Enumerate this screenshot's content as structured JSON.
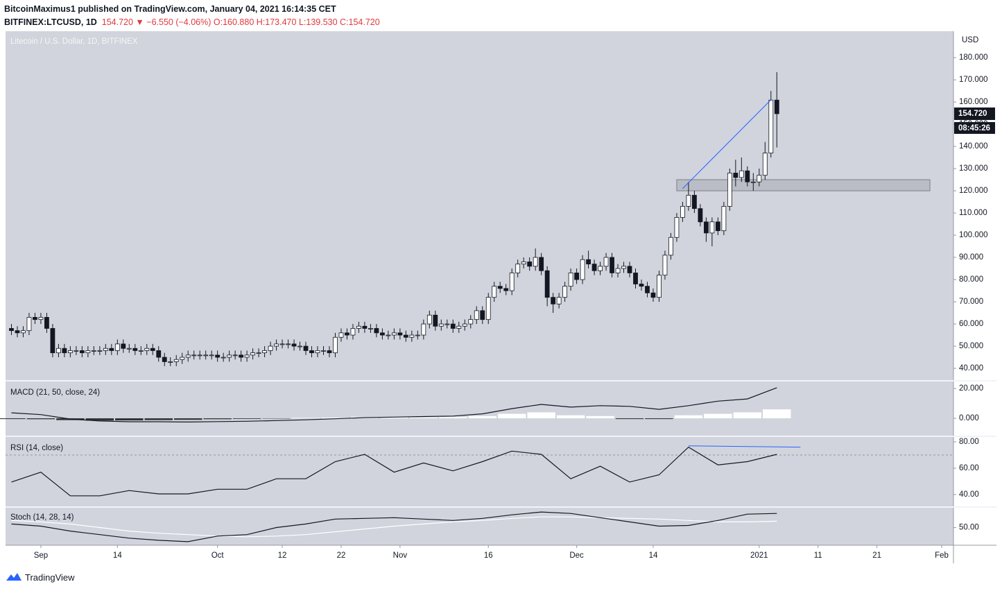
{
  "header": {
    "line1": "BitcoinMaximus1 published on TradingView.com, January 04, 2021 16:14:35 CET",
    "symbol": "BITFINEX:LTCUSD, 1D",
    "last": "154.720",
    "change": "−6.550 (−4.06%)",
    "open": "O:160.880",
    "high": "H:173.470",
    "low": "L:139.530",
    "close": "C:154.720"
  },
  "footer": {
    "brand": "TradingView"
  },
  "chart_data": [
    {
      "type": "candlestick",
      "title": "Litecoin / U.S. Dollar, 1D, BITFINEX",
      "unit": "USD",
      "x": [
        "2020-08-27",
        "2020-08-28",
        "2020-08-29",
        "2020-08-30",
        "2020-08-31",
        "2020-09-01",
        "2020-09-02",
        "2020-09-03",
        "2020-09-04",
        "2020-09-05",
        "2020-09-06",
        "2020-09-07",
        "2020-09-08",
        "2020-09-09",
        "2020-09-10",
        "2020-09-11",
        "2020-09-12",
        "2020-09-13",
        "2020-09-14",
        "2020-09-15",
        "2020-09-16",
        "2020-09-17",
        "2020-09-18",
        "2020-09-19",
        "2020-09-20",
        "2020-09-21",
        "2020-09-22",
        "2020-09-23",
        "2020-09-24",
        "2020-09-25",
        "2020-09-26",
        "2020-09-27",
        "2020-09-28",
        "2020-09-29",
        "2020-09-30",
        "2020-10-01",
        "2020-10-02",
        "2020-10-03",
        "2020-10-04",
        "2020-10-05",
        "2020-10-06",
        "2020-10-07",
        "2020-10-08",
        "2020-10-09",
        "2020-10-10",
        "2020-10-11",
        "2020-10-12",
        "2020-10-13",
        "2020-10-14",
        "2020-10-15",
        "2020-10-16",
        "2020-10-17",
        "2020-10-18",
        "2020-10-19",
        "2020-10-20",
        "2020-10-21",
        "2020-10-22",
        "2020-10-23",
        "2020-10-24",
        "2020-10-25",
        "2020-10-26",
        "2020-10-27",
        "2020-10-28",
        "2020-10-29",
        "2020-10-30",
        "2020-10-31",
        "2020-11-01",
        "2020-11-02",
        "2020-11-03",
        "2020-11-04",
        "2020-11-05",
        "2020-11-06",
        "2020-11-07",
        "2020-11-08",
        "2020-11-09",
        "2020-11-10",
        "2020-11-11",
        "2020-11-12",
        "2020-11-13",
        "2020-11-14",
        "2020-11-15",
        "2020-11-16",
        "2020-11-17",
        "2020-11-18",
        "2020-11-19",
        "2020-11-20",
        "2020-11-21",
        "2020-11-22",
        "2020-11-23",
        "2020-11-24",
        "2020-11-25",
        "2020-11-26",
        "2020-11-27",
        "2020-11-28",
        "2020-11-29",
        "2020-11-30",
        "2020-12-01",
        "2020-12-02",
        "2020-12-03",
        "2020-12-04",
        "2020-12-05",
        "2020-12-06",
        "2020-12-07",
        "2020-12-08",
        "2020-12-09",
        "2020-12-10",
        "2020-12-11",
        "2020-12-12",
        "2020-12-13",
        "2020-12-14",
        "2020-12-15",
        "2020-12-16",
        "2020-12-17",
        "2020-12-18",
        "2020-12-19",
        "2020-12-20",
        "2020-12-21",
        "2020-12-22",
        "2020-12-23",
        "2020-12-24",
        "2020-12-25",
        "2020-12-26",
        "2020-12-27",
        "2020-12-28",
        "2020-12-29",
        "2020-12-30",
        "2020-12-31",
        "2021-01-01",
        "2021-01-02",
        "2021-01-03",
        "2021-01-04"
      ],
      "open": [
        58,
        57,
        56,
        57,
        63,
        62,
        63,
        58,
        47,
        49,
        47,
        48,
        48,
        47,
        48,
        48,
        48,
        49,
        48,
        51,
        49,
        49,
        48,
        48,
        49,
        48,
        45,
        43,
        43,
        44,
        45,
        46,
        46,
        46,
        46,
        46,
        45,
        45,
        46,
        46,
        45,
        46,
        47,
        47,
        48,
        50,
        51,
        51,
        51,
        50,
        50,
        48,
        47,
        48,
        48,
        47,
        54,
        56,
        55,
        58,
        59,
        58,
        58,
        56,
        55,
        55,
        56,
        55,
        54,
        55,
        55,
        60,
        64,
        59,
        60,
        60,
        58,
        59,
        60,
        62,
        66,
        62,
        72,
        77,
        76,
        75,
        83,
        87,
        88,
        86,
        90,
        84,
        72,
        69,
        72,
        77,
        83,
        80,
        89,
        87,
        84,
        86,
        90,
        83,
        85,
        86,
        83,
        78,
        77,
        74,
        72,
        82,
        91,
        99,
        108,
        113,
        118,
        112,
        106,
        101,
        106,
        102,
        113,
        128,
        126,
        129,
        124,
        124,
        127,
        137,
        160.88
      ],
      "high": [
        60,
        59,
        59,
        65,
        65,
        65,
        65,
        60,
        51,
        51,
        50,
        50,
        50,
        50,
        50,
        50,
        51,
        51,
        53,
        53,
        51,
        51,
        50,
        51,
        51,
        50,
        47,
        45,
        46,
        47,
        48,
        48,
        48,
        48,
        48,
        48,
        47,
        48,
        48,
        48,
        48,
        49,
        49,
        50,
        52,
        53,
        53,
        53,
        53,
        52,
        52,
        50,
        50,
        50,
        50,
        56,
        58,
        58,
        60,
        61,
        61,
        60,
        60,
        58,
        57,
        58,
        58,
        57,
        57,
        57,
        62,
        66,
        66,
        62,
        62,
        62,
        61,
        62,
        64,
        68,
        68,
        74,
        79,
        79,
        78,
        85,
        89,
        90,
        90,
        94,
        92,
        86,
        74,
        74,
        79,
        85,
        85,
        91,
        93,
        89,
        88,
        92,
        92,
        87,
        88,
        88,
        85,
        80,
        79,
        76,
        84,
        93,
        101,
        110,
        115,
        124,
        120,
        114,
        108,
        108,
        108,
        115,
        130,
        134,
        135,
        131,
        128,
        130,
        142,
        165,
        173.47
      ],
      "low": [
        55,
        54,
        54,
        55,
        60,
        60,
        56,
        45,
        45,
        45,
        45,
        46,
        45,
        45,
        46,
        46,
        46,
        46,
        46,
        47,
        47,
        46,
        46,
        46,
        46,
        43,
        41,
        41,
        41,
        42,
        43,
        44,
        44,
        44,
        44,
        43,
        43,
        43,
        44,
        43,
        43,
        44,
        45,
        45,
        46,
        48,
        49,
        49,
        48,
        48,
        46,
        45,
        45,
        46,
        45,
        45,
        52,
        53,
        53,
        56,
        56,
        56,
        54,
        53,
        53,
        53,
        53,
        52,
        52,
        53,
        53,
        58,
        57,
        57,
        58,
        56,
        56,
        57,
        58,
        60,
        60,
        60,
        70,
        74,
        73,
        73,
        81,
        85,
        84,
        84,
        82,
        68,
        65,
        67,
        70,
        75,
        78,
        78,
        85,
        82,
        82,
        84,
        81,
        81,
        83,
        81,
        76,
        75,
        72,
        70,
        70,
        80,
        89,
        97,
        106,
        111,
        110,
        104,
        97,
        95,
        100,
        100,
        111,
        122,
        124,
        122,
        120,
        122,
        125,
        135,
        139.53
      ],
      "close": [
        57,
        56,
        57,
        63,
        62,
        63,
        58,
        47,
        49,
        47,
        48,
        48,
        47,
        48,
        48,
        48,
        49,
        48,
        51,
        49,
        49,
        48,
        48,
        49,
        48,
        45,
        43,
        43,
        44,
        45,
        46,
        46,
        46,
        46,
        46,
        45,
        45,
        46,
        46,
        45,
        46,
        47,
        47,
        48,
        50,
        51,
        51,
        51,
        50,
        50,
        48,
        47,
        48,
        48,
        47,
        54,
        56,
        55,
        58,
        59,
        58,
        58,
        56,
        55,
        55,
        56,
        55,
        54,
        55,
        55,
        60,
        64,
        59,
        60,
        60,
        58,
        59,
        60,
        62,
        66,
        62,
        72,
        77,
        76,
        75,
        83,
        87,
        88,
        86,
        90,
        84,
        72,
        69,
        72,
        77,
        83,
        80,
        89,
        87,
        84,
        86,
        90,
        83,
        85,
        86,
        83,
        78,
        77,
        74,
        72,
        82,
        91,
        99,
        108,
        113,
        118,
        112,
        106,
        101,
        106,
        102,
        113,
        128,
        126,
        129,
        124,
        124,
        127,
        137,
        160.88,
        154.72
      ],
      "up_color": "#ffffff",
      "down_color": "#131722",
      "xlim": [
        "2020-08-26",
        "2021-02-03"
      ],
      "xticks": [
        {
          "value": "2020-09-01",
          "label": "Sep"
        },
        {
          "value": "2020-09-14",
          "label": "14"
        },
        {
          "value": "2020-10-01",
          "label": "Oct"
        },
        {
          "value": "2020-10-12",
          "label": "12"
        },
        {
          "value": "2020-10-22",
          "label": "22"
        },
        {
          "value": "2020-11-01",
          "label": "Nov"
        },
        {
          "value": "2020-11-16",
          "label": "16"
        },
        {
          "value": "2020-12-01",
          "label": "Dec"
        },
        {
          "value": "2020-12-14",
          "label": "14"
        },
        {
          "value": "2021-01-01",
          "label": "2021"
        },
        {
          "value": "2021-01-11",
          "label": "11"
        },
        {
          "value": "2021-01-21",
          "label": "21"
        },
        {
          "value": "2021-02-01",
          "label": "Feb"
        }
      ],
      "ylim": [
        34.7,
        191.9
      ],
      "yticks": [
        {
          "value": 40,
          "label": "40.000"
        },
        {
          "value": 50,
          "label": "50.000"
        },
        {
          "value": 60,
          "label": "60.000"
        },
        {
          "value": 70,
          "label": "70.000"
        },
        {
          "value": 80,
          "label": "80.000"
        },
        {
          "value": 90,
          "label": "90.000"
        },
        {
          "value": 100,
          "label": "100.000"
        },
        {
          "value": 110,
          "label": "110.000"
        },
        {
          "value": 120,
          "label": "120.000"
        },
        {
          "value": 130,
          "label": "130.000"
        },
        {
          "value": 140,
          "label": "140.000"
        },
        {
          "value": 150,
          "label": "150.000"
        },
        {
          "value": 160,
          "label": "160.000"
        },
        {
          "value": 170,
          "label": "170.000"
        },
        {
          "value": 180,
          "label": "180.000"
        }
      ],
      "price_tag": {
        "value": 154.72,
        "label": "154.720",
        "countdown": "08:45:26"
      },
      "zone": {
        "x": [
          "2020-12-18",
          "2021-01-30"
        ],
        "y": [
          120,
          125
        ],
        "color": "#a3a6ae"
      },
      "trend_line": {
        "x": [
          "2020-12-19",
          "2021-01-03"
        ],
        "y": [
          121,
          161
        ],
        "color": "#2962ff"
      }
    },
    {
      "type": "macd",
      "title": "MACD (21, 50, close, 24)",
      "x": [
        "2020-08-27",
        "2020-09-01",
        "2020-09-06",
        "2020-09-11",
        "2020-09-16",
        "2020-09-21",
        "2020-09-26",
        "2020-10-01",
        "2020-10-06",
        "2020-10-11",
        "2020-10-16",
        "2020-10-21",
        "2020-10-26",
        "2020-10-31",
        "2020-11-05",
        "2020-11-10",
        "2020-11-15",
        "2020-11-20",
        "2020-11-25",
        "2020-11-30",
        "2020-12-05",
        "2020-12-10",
        "2020-12-15",
        "2020-12-20",
        "2020-12-25",
        "2020-12-30",
        "2021-01-04"
      ],
      "series": [
        {
          "name": "MACD",
          "color": "#131722",
          "values": [
            3.7,
            2.5,
            -0.5,
            -1.8,
            -2.3,
            -2.3,
            -2.5,
            -2.2,
            -2,
            -1.5,
            -1,
            -0.3,
            0.5,
            0.8,
            1.2,
            1.5,
            3,
            6.5,
            9.3,
            7.5,
            8.5,
            8,
            6,
            8.5,
            11.5,
            13,
            20.5
          ]
        },
        {
          "name": "Histogram",
          "kind": "bars",
          "color": "#ffffff",
          "negative_color": "#333333",
          "values": [
            -0.5,
            -0.6,
            -1.2,
            -1.5,
            -1.4,
            -1.2,
            -1,
            -0.6,
            -0.4,
            -0.2,
            0.3,
            0.5,
            1,
            0.8,
            0.6,
            0.8,
            1.5,
            3,
            4,
            2,
            1.5,
            -0.5,
            -0.5,
            2,
            3,
            4,
            6
          ]
        }
      ],
      "ylim": [
        -11.6,
        24.65
      ],
      "yticks": [
        {
          "value": 0,
          "label": "0.000"
        },
        {
          "value": 20,
          "label": "20.000"
        }
      ]
    },
    {
      "type": "rsi",
      "title": "RSI (14, close)",
      "x": [
        "2020-08-27",
        "2020-09-01",
        "2020-09-06",
        "2020-09-11",
        "2020-09-16",
        "2020-09-21",
        "2020-09-26",
        "2020-10-01",
        "2020-10-06",
        "2020-10-11",
        "2020-10-16",
        "2020-10-21",
        "2020-10-26",
        "2020-10-31",
        "2020-11-05",
        "2020-11-10",
        "2020-11-15",
        "2020-11-20",
        "2020-11-25",
        "2020-11-30",
        "2020-12-05",
        "2020-12-10",
        "2020-12-15",
        "2020-12-20",
        "2020-12-25",
        "2020-12-30",
        "2021-01-04"
      ],
      "series": [
        {
          "name": "RSI",
          "color": "#131722",
          "values": [
            49.5,
            57,
            39,
            39,
            43,
            40.5,
            40.5,
            44,
            44,
            52,
            52,
            65,
            70.5,
            57,
            64,
            58,
            65,
            73,
            70.5,
            52,
            61.5,
            49.5,
            55,
            76,
            62.5,
            65,
            70.5
          ]
        }
      ],
      "level": 70,
      "trend_line": {
        "x": [
          "2020-12-20",
          "2021-01-08"
        ],
        "y": [
          77,
          76
        ],
        "color": "#2962ff"
      },
      "ylim": [
        31,
        83.7
      ],
      "yticks": [
        {
          "value": 40,
          "label": "40.00"
        },
        {
          "value": 60,
          "label": "60.00"
        },
        {
          "value": 80,
          "label": "80.00"
        }
      ]
    },
    {
      "type": "stoch",
      "title": "Stoch (14, 28, 14)",
      "x": [
        "2020-08-27",
        "2020-09-01",
        "2020-09-06",
        "2020-09-11",
        "2020-09-16",
        "2020-09-21",
        "2020-09-26",
        "2020-10-01",
        "2020-10-06",
        "2020-10-11",
        "2020-10-16",
        "2020-10-21",
        "2020-10-26",
        "2020-10-31",
        "2020-11-05",
        "2020-11-10",
        "2020-11-15",
        "2020-11-20",
        "2020-11-25",
        "2020-11-30",
        "2020-12-05",
        "2020-12-10",
        "2020-12-15",
        "2020-12-20",
        "2020-12-25",
        "2020-12-30",
        "2021-01-04"
      ],
      "series": [
        {
          "name": "%K",
          "color": "#131722",
          "values": [
            55,
            52,
            45,
            40,
            35,
            32,
            30,
            38,
            40,
            50,
            55,
            62,
            63,
            64,
            62,
            60,
            63,
            68,
            72,
            70,
            64,
            58,
            52,
            53,
            60,
            69,
            70
          ]
        },
        {
          "name": "%D",
          "color": "#ffffff",
          "values": [
            60,
            58,
            55,
            50,
            45,
            42,
            40,
            38,
            37,
            38,
            40,
            44,
            48,
            52,
            55,
            58,
            60,
            63,
            65,
            65,
            64,
            63,
            62,
            60,
            58,
            58,
            59
          ]
        }
      ],
      "ylim": [
        25,
        78
      ],
      "yticks": [
        {
          "value": 50,
          "label": "50.00"
        }
      ]
    }
  ]
}
